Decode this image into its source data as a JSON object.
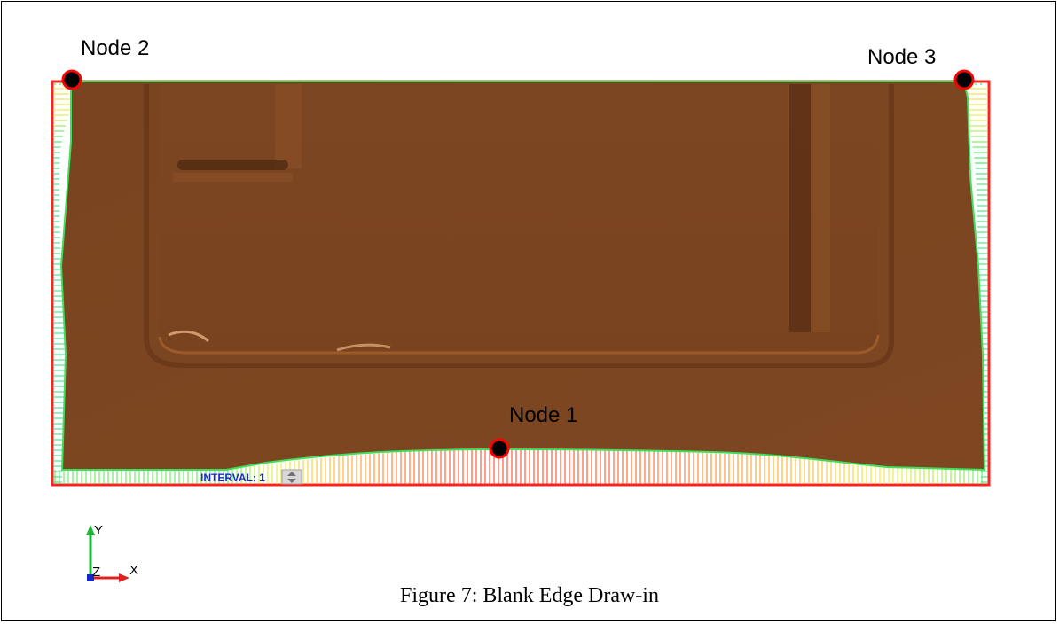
{
  "figure": {
    "caption": "Figure 7: Blank Edge Draw-in",
    "interval_label": "INTERVAL: 1",
    "nodes": [
      {
        "id": "node-1",
        "label": "Node 1"
      },
      {
        "id": "node-2",
        "label": "Node 2"
      },
      {
        "id": "node-3",
        "label": "Node 3"
      }
    ],
    "axes": {
      "x": "X",
      "y": "Y",
      "z": "Z"
    },
    "colors": {
      "part": "#7b4520",
      "outline": "#ff2020",
      "node_fill": "#000000",
      "node_ring": "#ff0000",
      "contour_min": "#00e0ff",
      "contour_max": "#ff3000"
    }
  }
}
